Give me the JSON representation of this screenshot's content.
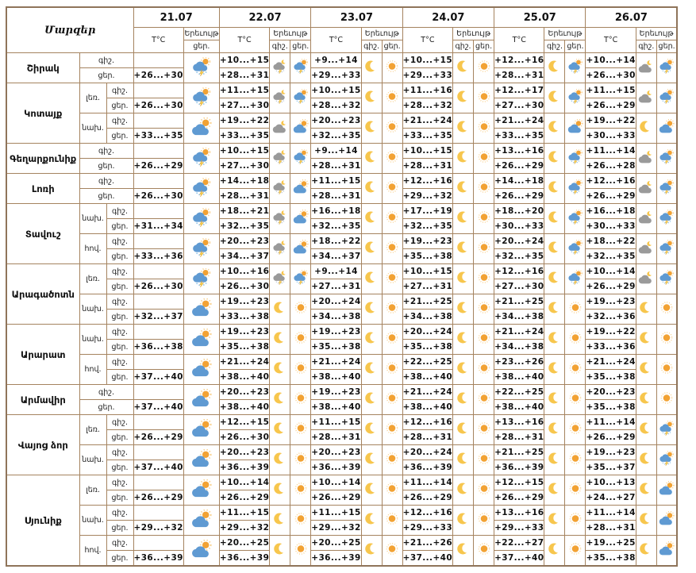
{
  "header": {
    "regions_title": "Մարզեր",
    "temp": "T°C",
    "phenomenon": "Երեւույթ",
    "night": "գիշ.",
    "day": "ցեր.",
    "dates": [
      "21.07",
      "22.07",
      "23.07",
      "24.07",
      "25.07",
      "26.07"
    ]
  },
  "colors": {
    "border": "#a5835f",
    "sun": "#f2a233",
    "sun_ray": "#f8cf8a",
    "moon": "#f7c64d",
    "cloud_day": "#5f9ad2",
    "cloud_night": "#9a9a9a",
    "lightning": "#f6d04b",
    "rain": "#8fc3e8",
    "rain_night": "#b9c7d6"
  },
  "icon_legend": {
    "sun": "clear-day",
    "moon": "clear-night",
    "partly-day": "sun-behind-cloud",
    "cloudy-night": "moon-behind-cloud",
    "thunder-day": "sun-cloud-rain-lightning",
    "thunder-night": "moon-cloud-rain-lightning"
  },
  "regions": [
    {
      "name": "Շիրակ",
      "zones": [
        {
          "label": "",
          "night_temps": [
            "",
            "+10...+15",
            "+9...+14",
            "+10...+15",
            "+12...+16",
            "+10...+14"
          ],
          "day_temps": [
            "+26...+30",
            "+28...+31",
            "+29...+33",
            "+29...+33",
            "+28...+31",
            "+26...+30"
          ],
          "icon21": "thunder-day",
          "night_icons": [
            "thunder-night",
            "moon",
            "moon",
            "moon",
            "cloudy-night"
          ],
          "day_icons": [
            "thunder-day",
            "sun",
            "sun",
            "thunder-day",
            "thunder-day"
          ]
        }
      ]
    },
    {
      "name": "Կոտայք",
      "zones": [
        {
          "label": "լեռ.",
          "night_temps": [
            "",
            "+11...+15",
            "+10...+15",
            "+11...+16",
            "+12...+17",
            "+11...+15"
          ],
          "day_temps": [
            "+26...+30",
            "+27...+30",
            "+28...+32",
            "+28...+32",
            "+27...+30",
            "+26...+29"
          ],
          "icon21": "thunder-day",
          "night_icons": [
            "thunder-night",
            "moon",
            "moon",
            "moon",
            "cloudy-night"
          ],
          "day_icons": [
            "thunder-day",
            "sun",
            "sun",
            "thunder-day",
            "thunder-day"
          ]
        },
        {
          "label": "նախ.",
          "night_temps": [
            "",
            "+19...+22",
            "+20...+23",
            "+21...+24",
            "+21...+24",
            "+19...+22"
          ],
          "day_temps": [
            "+33...+35",
            "+33...+35",
            "+32...+35",
            "+33...+35",
            "+33...+35",
            "+30...+33"
          ],
          "icon21": "partly-day",
          "night_icons": [
            "cloudy-night",
            "moon",
            "moon",
            "moon",
            "moon"
          ],
          "day_icons": [
            "partly-day",
            "sun",
            "sun",
            "partly-day",
            "partly-day"
          ]
        }
      ]
    },
    {
      "name": "Գեղարքունիք",
      "zones": [
        {
          "label": "",
          "night_temps": [
            "",
            "+10...+15",
            "+9...+14",
            "+10...+15",
            "+13...+16",
            "+11...+14"
          ],
          "day_temps": [
            "+26...+29",
            "+27...+30",
            "+28...+31",
            "+28...+31",
            "+26...+29",
            "+26...+28"
          ],
          "icon21": "thunder-day",
          "night_icons": [
            "thunder-night",
            "moon",
            "moon",
            "moon",
            "cloudy-night"
          ],
          "day_icons": [
            "thunder-day",
            "sun",
            "sun",
            "thunder-day",
            "thunder-day"
          ]
        }
      ]
    },
    {
      "name": "Լոռի",
      "zones": [
        {
          "label": "",
          "night_temps": [
            "",
            "+14...+18",
            "+11...+15",
            "+12...+16",
            "+14...+18",
            "+12...+16"
          ],
          "day_temps": [
            "+26...+30",
            "+28...+31",
            "+28...+31",
            "+29...+32",
            "+26...+29",
            "+26...+29"
          ],
          "icon21": "thunder-day",
          "night_icons": [
            "thunder-night",
            "moon",
            "moon",
            "moon",
            "cloudy-night"
          ],
          "day_icons": [
            "partly-day",
            "sun",
            "sun",
            "thunder-day",
            "thunder-day"
          ]
        }
      ]
    },
    {
      "name": "Տավուշ",
      "zones": [
        {
          "label": "նախ.",
          "night_temps": [
            "",
            "+18...+21",
            "+16...+18",
            "+17...+19",
            "+18...+20",
            "+16...+18"
          ],
          "day_temps": [
            "+31...+34",
            "+32...+35",
            "+32...+35",
            "+32...+35",
            "+30...+33",
            "+30...+33"
          ],
          "icon21": "thunder-day",
          "night_icons": [
            "thunder-night",
            "moon",
            "moon",
            "moon",
            "cloudy-night"
          ],
          "day_icons": [
            "partly-day",
            "sun",
            "sun",
            "thunder-day",
            "thunder-day"
          ]
        },
        {
          "label": "հով.",
          "night_temps": [
            "",
            "+20...+23",
            "+18...+22",
            "+19...+23",
            "+20...+24",
            "+18...+22"
          ],
          "day_temps": [
            "+33...+36",
            "+34...+37",
            "+34...+37",
            "+35...+38",
            "+32...+35",
            "+32...+35"
          ],
          "icon21": "thunder-day",
          "night_icons": [
            "thunder-night",
            "moon",
            "moon",
            "moon",
            "cloudy-night"
          ],
          "day_icons": [
            "partly-day",
            "sun",
            "sun",
            "thunder-day",
            "thunder-day"
          ]
        }
      ]
    },
    {
      "name": "Արագածոտն",
      "zones": [
        {
          "label": "լեռ.",
          "night_temps": [
            "",
            "+10...+16",
            "+9...+14",
            "+10...+15",
            "+12...+16",
            "+10...+14"
          ],
          "day_temps": [
            "+26...+30",
            "+26...+30",
            "+27...+31",
            "+27...+31",
            "+27...+30",
            "+26...+29"
          ],
          "icon21": "thunder-day",
          "night_icons": [
            "thunder-night",
            "moon",
            "moon",
            "moon",
            "cloudy-night"
          ],
          "day_icons": [
            "thunder-day",
            "sun",
            "sun",
            "thunder-day",
            "thunder-day"
          ]
        },
        {
          "label": "նախ.",
          "night_temps": [
            "",
            "+19...+23",
            "+20...+24",
            "+21...+25",
            "+21...+25",
            "+19...+23"
          ],
          "day_temps": [
            "+32...+37",
            "+33...+38",
            "+34...+38",
            "+34...+38",
            "+34...+38",
            "+32...+36"
          ],
          "icon21": "partly-day",
          "night_icons": [
            "moon",
            "moon",
            "moon",
            "moon",
            "moon"
          ],
          "day_icons": [
            "sun",
            "sun",
            "sun",
            "sun",
            "sun"
          ]
        }
      ]
    },
    {
      "name": "Արարատ",
      "zones": [
        {
          "label": "նախ.",
          "night_temps": [
            "",
            "+19...+23",
            "+19...+23",
            "+20...+24",
            "+21...+24",
            "+19...+22"
          ],
          "day_temps": [
            "+36...+38",
            "+35...+38",
            "+35...+38",
            "+35...+38",
            "+34...+38",
            "+33...+36"
          ],
          "icon21": "partly-day",
          "night_icons": [
            "moon",
            "moon",
            "moon",
            "moon",
            "moon"
          ],
          "day_icons": [
            "sun",
            "sun",
            "sun",
            "sun",
            "sun"
          ]
        },
        {
          "label": "հով.",
          "night_temps": [
            "",
            "+21...+24",
            "+21...+24",
            "+22...+25",
            "+23...+26",
            "+21...+24"
          ],
          "day_temps": [
            "+37...+40",
            "+38...+40",
            "+38...+40",
            "+38...+40",
            "+38...+40",
            "+35...+38"
          ],
          "icon21": "partly-day",
          "night_icons": [
            "moon",
            "moon",
            "moon",
            "moon",
            "moon"
          ],
          "day_icons": [
            "sun",
            "sun",
            "sun",
            "sun",
            "sun"
          ]
        }
      ]
    },
    {
      "name": "Արմավիր",
      "zones": [
        {
          "label": "",
          "night_temps": [
            "",
            "+20...+23",
            "+19...+23",
            "+21...+24",
            "+22...+25",
            "+20...+23"
          ],
          "day_temps": [
            "+37...+40",
            "+38...+40",
            "+38...+40",
            "+38...+40",
            "+38...+40",
            "+35...+38"
          ],
          "icon21": "partly-day",
          "night_icons": [
            "moon",
            "moon",
            "moon",
            "moon",
            "moon"
          ],
          "day_icons": [
            "sun",
            "sun",
            "sun",
            "sun",
            "sun"
          ]
        }
      ]
    },
    {
      "name": "Վայոց ձոր",
      "zones": [
        {
          "label": "լեռ.",
          "night_temps": [
            "",
            "+12...+15",
            "+11...+15",
            "+12...+16",
            "+13...+16",
            "+11...+14"
          ],
          "day_temps": [
            "+26...+29",
            "+26...+30",
            "+28...+31",
            "+28...+31",
            "+28...+31",
            "+26...+29"
          ],
          "icon21": "partly-day",
          "night_icons": [
            "moon",
            "moon",
            "moon",
            "moon",
            "moon"
          ],
          "day_icons": [
            "sun",
            "sun",
            "sun",
            "sun",
            "thunder-day"
          ]
        },
        {
          "label": "նախ.",
          "night_temps": [
            "",
            "+20...+23",
            "+20...+23",
            "+20...+24",
            "+21...+25",
            "+19...+23"
          ],
          "day_temps": [
            "+37...+40",
            "+36...+39",
            "+36...+39",
            "+36...+39",
            "+36...+39",
            "+35...+37"
          ],
          "icon21": "partly-day",
          "night_icons": [
            "moon",
            "moon",
            "moon",
            "moon",
            "moon"
          ],
          "day_icons": [
            "sun",
            "sun",
            "sun",
            "sun",
            "thunder-day"
          ]
        }
      ]
    },
    {
      "name": "Սյունիք",
      "zones": [
        {
          "label": "լեռ.",
          "night_temps": [
            "",
            "+10...+14",
            "+10...+14",
            "+11...+14",
            "+12...+15",
            "+10...+13"
          ],
          "day_temps": [
            "+26...+29",
            "+26...+29",
            "+26...+29",
            "+26...+29",
            "+26...+29",
            "+24...+27"
          ],
          "icon21": "partly-day",
          "night_icons": [
            "moon",
            "moon",
            "moon",
            "moon",
            "moon"
          ],
          "day_icons": [
            "sun",
            "sun",
            "sun",
            "sun",
            "partly-day"
          ]
        },
        {
          "label": "նախ.",
          "night_temps": [
            "",
            "+11...+15",
            "+11...+15",
            "+12...+16",
            "+13...+16",
            "+11...+14"
          ],
          "day_temps": [
            "+29...+32",
            "+29...+32",
            "+29...+32",
            "+29...+33",
            "+29...+33",
            "+28...+31"
          ],
          "icon21": "partly-day",
          "night_icons": [
            "moon",
            "moon",
            "moon",
            "moon",
            "moon"
          ],
          "day_icons": [
            "sun",
            "sun",
            "sun",
            "sun",
            "partly-day"
          ]
        },
        {
          "label": "հով.",
          "night_temps": [
            "",
            "+20...+25",
            "+20...+25",
            "+21...+26",
            "+22...+27",
            "+19...+25"
          ],
          "day_temps": [
            "+36...+39",
            "+36...+39",
            "+36...+39",
            "+37...+40",
            "+37...+40",
            "+35...+38"
          ],
          "icon21": "partly-day",
          "night_icons": [
            "moon",
            "moon",
            "moon",
            "moon",
            "moon"
          ],
          "day_icons": [
            "sun",
            "sun",
            "sun",
            "sun",
            "partly-day"
          ]
        }
      ]
    }
  ]
}
